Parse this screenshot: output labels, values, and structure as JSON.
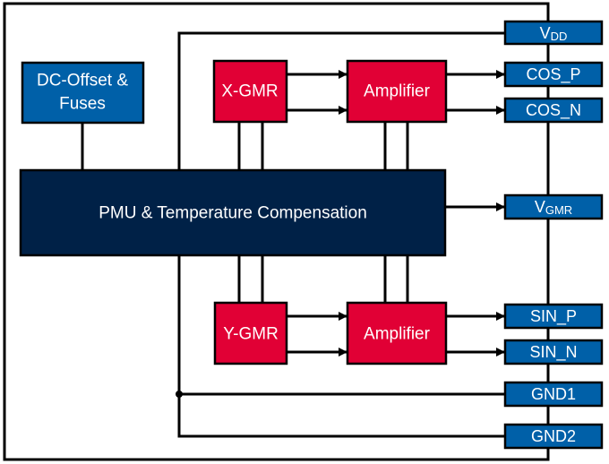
{
  "colors": {
    "pin": "#0060a8",
    "sensor": "#e10035",
    "pmu": "#002147",
    "dc_offset": "#0060a8"
  },
  "blocks": {
    "dc_offset_line1": "DC-Offset &",
    "dc_offset_line2": "Fuses",
    "x_gmr": "X-GMR",
    "y_gmr": "Y-GMR",
    "amp_top": "Amplifier",
    "amp_bottom": "Amplifier",
    "pmu": "PMU & Temperature Compensation"
  },
  "pins": {
    "vdd_main": "V",
    "vdd_sub": "DD",
    "cos_p": "COS_P",
    "cos_n": "COS_N",
    "vgmr_main": "V",
    "vgmr_sub": "GMR",
    "sin_p": "SIN_P",
    "sin_n": "SIN_N",
    "gnd1": "GND1",
    "gnd2": "GND2"
  }
}
